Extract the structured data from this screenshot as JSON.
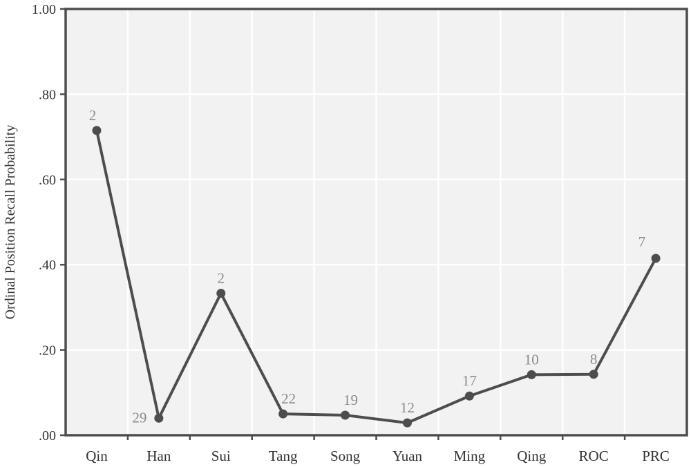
{
  "chart_data": {
    "type": "line",
    "title": "",
    "xlabel": "",
    "ylabel": "Ordinal Position Recall Probability",
    "categories": [
      "Qin",
      "Han",
      "Sui",
      "Tang",
      "Song",
      "Yuan",
      "Ming",
      "Qing",
      "ROC",
      "PRC"
    ],
    "values": [
      0.715,
      0.04,
      0.333,
      0.05,
      0.047,
      0.029,
      0.092,
      0.142,
      0.143,
      0.415
    ],
    "point_labels": [
      "2",
      "29",
      "2",
      "22",
      "19",
      "12",
      "17",
      "10",
      "8",
      "7"
    ],
    "ylim": [
      0,
      1.0
    ],
    "yticks": [
      0,
      0.2,
      0.4,
      0.6,
      0.8,
      1.0
    ],
    "ytick_labels": [
      ".00",
      ".20",
      ".40",
      ".60",
      ".80",
      "1.00"
    ],
    "grid": true,
    "legend": "none",
    "colors": {
      "line": "#4d4d4d",
      "plot_background": "#f2f2f2",
      "grid": "#ffffff",
      "axis": "#4d4d4d",
      "data_label": "#8a8a8a"
    }
  }
}
